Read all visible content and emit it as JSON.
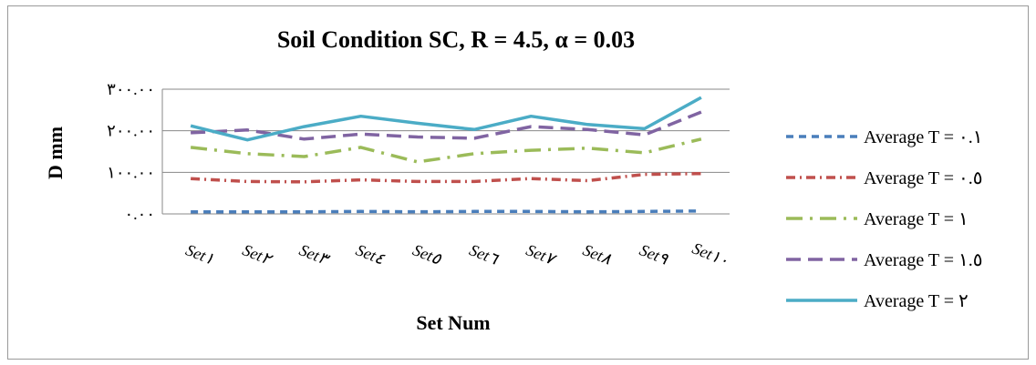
{
  "chart_data": {
    "type": "line",
    "title": "Soil Condition SC, R = 4.5, α = 0.03",
    "xlabel": "Set Num",
    "ylabel": "D mm",
    "ylim": [
      0,
      300
    ],
    "y_ticks": [
      "٠.٠٠",
      "١٠٠.٠٠",
      "٢٠٠.٠٠",
      "٣٠٠.٠٠"
    ],
    "categories": [
      "Set١",
      "Set٢",
      "Set٣",
      "Set٤",
      "Set٥",
      "Set٦",
      "Set٧",
      "Set٨",
      "Set٩",
      "Set١٠"
    ],
    "grid": true,
    "legend_position": "right",
    "series": [
      {
        "name": "Average T = ٠.١",
        "color": "#4a7ebb",
        "dash": "8,6",
        "values": [
          5,
          5,
          5,
          6,
          5,
          6,
          6,
          5,
          6,
          7
        ]
      },
      {
        "name": "Average T = ٠.٥",
        "color": "#c0504d",
        "dash": "10,5,2,5",
        "values": [
          85,
          78,
          77,
          82,
          78,
          78,
          85,
          80,
          95,
          97
        ]
      },
      {
        "name": "Average T = ١",
        "color": "#9bbb59",
        "dash": "18,8,3,8",
        "values": [
          160,
          145,
          138,
          160,
          125,
          145,
          153,
          158,
          147,
          180
        ]
      },
      {
        "name": "Average T = ١.٥",
        "color": "#8064a2",
        "dash": "16,8",
        "values": [
          195,
          202,
          180,
          192,
          185,
          182,
          210,
          203,
          190,
          245
        ]
      },
      {
        "name": "Average T = ٢",
        "color": "#4bacc6",
        "dash": "",
        "values": [
          212,
          178,
          210,
          235,
          218,
          203,
          235,
          215,
          205,
          280
        ]
      }
    ]
  }
}
